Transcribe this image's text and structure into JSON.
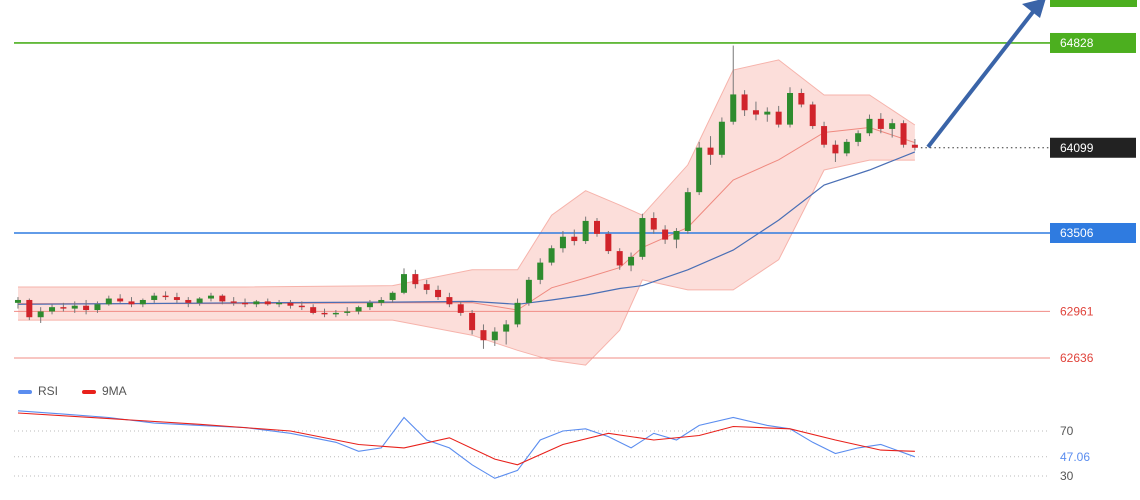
{
  "chart_data": [
    {
      "type": "candlestick",
      "ylim": [
        62518,
        65127
      ],
      "xlim": [
        -0.35,
        90.9
      ],
      "up_color": "#2e8b2e",
      "down_color": "#d0242b",
      "candles": [
        [
          63020,
          63060,
          62980,
          63040
        ],
        [
          63040,
          63050,
          62900,
          62920
        ],
        [
          62920,
          62990,
          62880,
          62960
        ],
        [
          62960,
          63010,
          62940,
          62990
        ],
        [
          62990,
          63020,
          62960,
          62980
        ],
        [
          62980,
          63030,
          62950,
          63000
        ],
        [
          63000,
          63040,
          62940,
          62970
        ],
        [
          62970,
          63030,
          62950,
          63010
        ],
        [
          63010,
          63070,
          63000,
          63050
        ],
        [
          63050,
          63080,
          63020,
          63030
        ],
        [
          63030,
          63060,
          62990,
          63010
        ],
        [
          63010,
          63050,
          62990,
          63040
        ],
        [
          63040,
          63090,
          63020,
          63070
        ],
        [
          63070,
          63100,
          63040,
          63060
        ],
        [
          63060,
          63090,
          63020,
          63040
        ],
        [
          63040,
          63060,
          62990,
          63020
        ],
        [
          63020,
          63060,
          63000,
          63050
        ],
        [
          63050,
          63090,
          63030,
          63070
        ],
        [
          63070,
          63080,
          63010,
          63030
        ],
        [
          63030,
          63060,
          63000,
          63020
        ],
        [
          63020,
          63050,
          62990,
          63010
        ],
        [
          63010,
          63040,
          62990,
          63030
        ],
        [
          63030,
          63050,
          63000,
          63010
        ],
        [
          63010,
          63040,
          62990,
          63020
        ],
        [
          63020,
          63040,
          62980,
          63000
        ],
        [
          63000,
          63030,
          62970,
          62990
        ],
        [
          62990,
          63010,
          62940,
          62950
        ],
        [
          62950,
          62980,
          62920,
          62940
        ],
        [
          62940,
          62970,
          62920,
          62950
        ],
        [
          62950,
          62990,
          62930,
          62960
        ],
        [
          62960,
          63000,
          62940,
          62990
        ],
        [
          62990,
          63040,
          62970,
          63020
        ],
        [
          63020,
          63060,
          63000,
          63040
        ],
        [
          63040,
          63100,
          63020,
          63090
        ],
        [
          63090,
          63260,
          63080,
          63220
        ],
        [
          63220,
          63250,
          63120,
          63150
        ],
        [
          63150,
          63180,
          63080,
          63110
        ],
        [
          63110,
          63140,
          63040,
          63060
        ],
        [
          63060,
          63090,
          62990,
          63010
        ],
        [
          63010,
          63030,
          62930,
          62950
        ],
        [
          62950,
          62970,
          62800,
          62830
        ],
        [
          62830,
          62870,
          62700,
          62760
        ],
        [
          62760,
          62850,
          62720,
          62820
        ],
        [
          62820,
          62900,
          62730,
          62870
        ],
        [
          62870,
          63050,
          62850,
          63020
        ],
        [
          63020,
          63200,
          63000,
          63180
        ],
        [
          63180,
          63330,
          63150,
          63300
        ],
        [
          63300,
          63420,
          63280,
          63400
        ],
        [
          63400,
          63520,
          63370,
          63480
        ],
        [
          63480,
          63530,
          63420,
          63450
        ],
        [
          63450,
          63620,
          63430,
          63590
        ],
        [
          63590,
          63610,
          63480,
          63500
        ],
        [
          63500,
          63520,
          63360,
          63380
        ],
        [
          63380,
          63400,
          63250,
          63280
        ],
        [
          63280,
          63370,
          63240,
          63340
        ],
        [
          63340,
          63640,
          63320,
          63610
        ],
        [
          63610,
          63650,
          63500,
          63530
        ],
        [
          63530,
          63560,
          63430,
          63460
        ],
        [
          63460,
          63540,
          63400,
          63520
        ],
        [
          63520,
          63820,
          63500,
          63790
        ],
        [
          63790,
          64140,
          63770,
          64100
        ],
        [
          64100,
          64180,
          63980,
          64050
        ],
        [
          64050,
          64310,
          64030,
          64280
        ],
        [
          64280,
          64810,
          64260,
          64470
        ],
        [
          64470,
          64500,
          64320,
          64360
        ],
        [
          64360,
          64420,
          64290,
          64330
        ],
        [
          64330,
          64380,
          64280,
          64350
        ],
        [
          64350,
          64390,
          64240,
          64260
        ],
        [
          64260,
          64520,
          64240,
          64480
        ],
        [
          64480,
          64510,
          64380,
          64400
        ],
        [
          64400,
          64420,
          64230,
          64250
        ],
        [
          64250,
          64280,
          64100,
          64120
        ],
        [
          64120,
          64150,
          64000,
          64060
        ],
        [
          64060,
          64160,
          64040,
          64140
        ],
        [
          64140,
          64220,
          64110,
          64200
        ],
        [
          64200,
          64330,
          64180,
          64300
        ],
        [
          64300,
          64340,
          64200,
          64230
        ],
        [
          64230,
          64300,
          64170,
          64270
        ],
        [
          64270,
          64290,
          64100,
          64120
        ],
        [
          64120,
          64160,
          64080,
          64099
        ]
      ],
      "bands": {
        "x": [
          0,
          10,
          20,
          33,
          40,
          44,
          47,
          50,
          53,
          55,
          59,
          63,
          67,
          71,
          75,
          79
        ],
        "upper": [
          63130,
          63130,
          63130,
          63140,
          63250,
          63250,
          63630,
          63800,
          63700,
          63630,
          63980,
          64640,
          64710,
          64466,
          64466,
          64257
        ],
        "middle": [
          63015,
          63015,
          63015,
          63020,
          63022,
          62970,
          63125,
          63193,
          63265,
          63405,
          63545,
          63875,
          64015,
          64205,
          64240,
          64135
        ],
        "lower": [
          62900,
          62900,
          62900,
          62900,
          62795,
          62690,
          62620,
          62587,
          62830,
          63180,
          63110,
          63110,
          63320,
          63944,
          64013,
          64013
        ],
        "fill": "#fbd3cd",
        "edge_color": "#f6b3ab",
        "middle_color": "#ef8a80"
      },
      "moving_average": {
        "x": [
          0,
          10,
          20,
          33,
          40,
          44,
          47,
          50,
          53,
          55,
          59,
          63,
          67,
          71,
          75,
          79
        ],
        "values": [
          63010,
          63015,
          63020,
          63025,
          63030,
          63010,
          63040,
          63074,
          63120,
          63140,
          63250,
          63387,
          63596,
          63840,
          63944,
          64070
        ],
        "color": "#4a6fb5"
      },
      "levels": [
        {
          "value": 64828,
          "color": "#4caf1f",
          "style": "solid",
          "label_bg": "#4caf1f",
          "label_color": "#ffffff"
        },
        {
          "value": 64099,
          "color": "#333333",
          "style": "dotted",
          "label_bg": "#222222",
          "label_color": "#ffffff"
        },
        {
          "value": 63506,
          "color": "#2f7be0",
          "style": "solid",
          "label_bg": "#2f7be0",
          "label_color": "#ffffff"
        },
        {
          "value": 62961,
          "color": "#f08c86",
          "style": "solid",
          "label_bg": "none",
          "label_color": "#e0443c"
        },
        {
          "value": 62636,
          "color": "#f08c86",
          "style": "solid",
          "label_bg": "none",
          "label_color": "#e0443c"
        }
      ]
    },
    {
      "type": "line",
      "ylim": [
        9,
        98
      ],
      "xlim": [
        -0.35,
        90.9
      ],
      "yticks": [
        70,
        30
      ],
      "series": [
        {
          "name": "RSI",
          "color": "#5b8def",
          "x": [
            0,
            4,
            8,
            12,
            16,
            20,
            24,
            28,
            30,
            32,
            34,
            36,
            38,
            40,
            42,
            44,
            46,
            48,
            50,
            52,
            54,
            56,
            58,
            60,
            63,
            66,
            68,
            70,
            72,
            74,
            76,
            79
          ],
          "values": [
            88,
            85,
            82,
            77,
            75,
            73,
            68,
            60,
            52,
            55,
            82,
            62,
            55,
            40,
            28,
            35,
            62,
            70,
            72,
            65,
            55,
            68,
            62,
            75,
            82,
            75,
            72,
            60,
            50,
            55,
            58,
            47.06
          ]
        },
        {
          "name": "9MA",
          "color": "#e8211b",
          "x": [
            0,
            8,
            16,
            24,
            30,
            34,
            38,
            42,
            44,
            48,
            52,
            56,
            60,
            63,
            68,
            72,
            76,
            79
          ],
          "values": [
            86,
            81,
            76,
            70,
            58,
            55,
            64,
            45,
            40,
            58,
            68,
            62,
            66,
            74,
            72,
            62,
            53,
            52
          ]
        }
      ],
      "current_value": 47.06,
      "current_color": "#5b8def"
    }
  ]
}
